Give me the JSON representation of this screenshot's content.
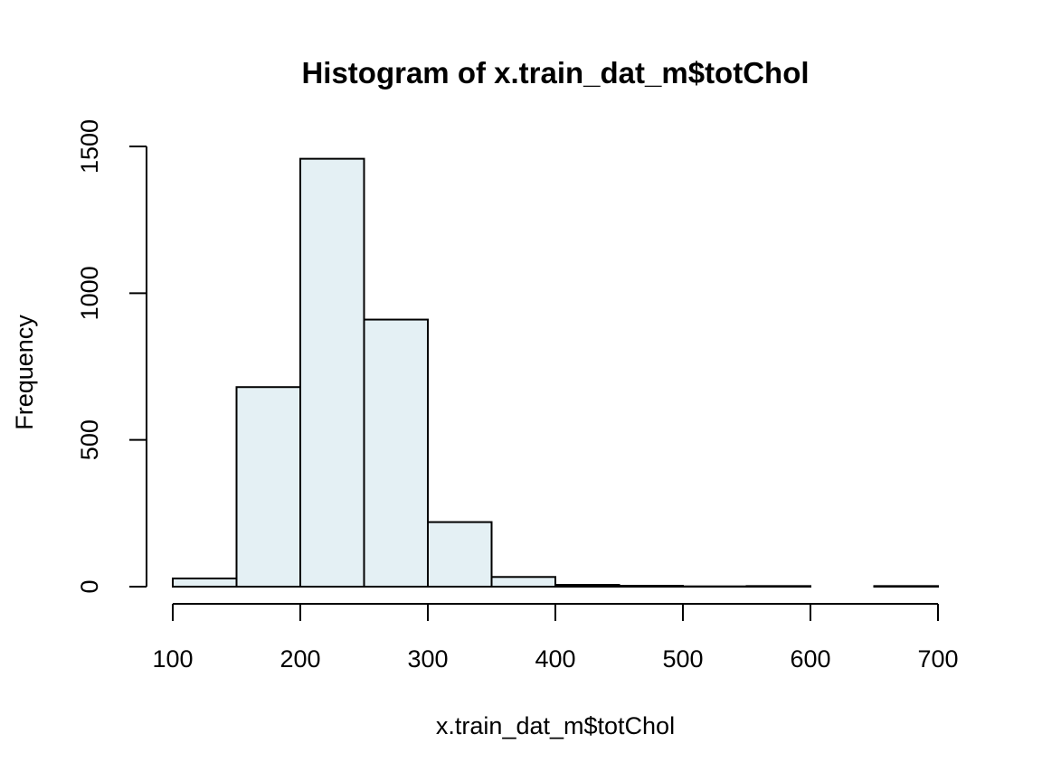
{
  "chart_data": {
    "type": "bar",
    "title": "Histogram of x.train_dat_m$totChol",
    "xlabel": "x.train_dat_m$totChol",
    "ylabel": "Frequency",
    "bins": [
      {
        "x0": 100,
        "x1": 150,
        "count": 28
      },
      {
        "x0": 150,
        "x1": 200,
        "count": 680
      },
      {
        "x0": 200,
        "x1": 250,
        "count": 1458
      },
      {
        "x0": 250,
        "x1": 300,
        "count": 910
      },
      {
        "x0": 300,
        "x1": 350,
        "count": 220
      },
      {
        "x0": 350,
        "x1": 400,
        "count": 33
      },
      {
        "x0": 400,
        "x1": 450,
        "count": 6
      },
      {
        "x0": 450,
        "x1": 500,
        "count": 3
      },
      {
        "x0": 500,
        "x1": 550,
        "count": 1
      },
      {
        "x0": 550,
        "x1": 600,
        "count": 2
      },
      {
        "x0": 600,
        "x1": 650,
        "count": 0
      },
      {
        "x0": 650,
        "x1": 700,
        "count": 2
      }
    ],
    "xlim": [
      100,
      700
    ],
    "ylim": [
      0,
      1500
    ],
    "xticks": [
      100,
      200,
      300,
      400,
      500,
      600,
      700
    ],
    "yticks": [
      0,
      500,
      1000,
      1500
    ],
    "bar_color": "#e4f0f4",
    "grid": false
  }
}
